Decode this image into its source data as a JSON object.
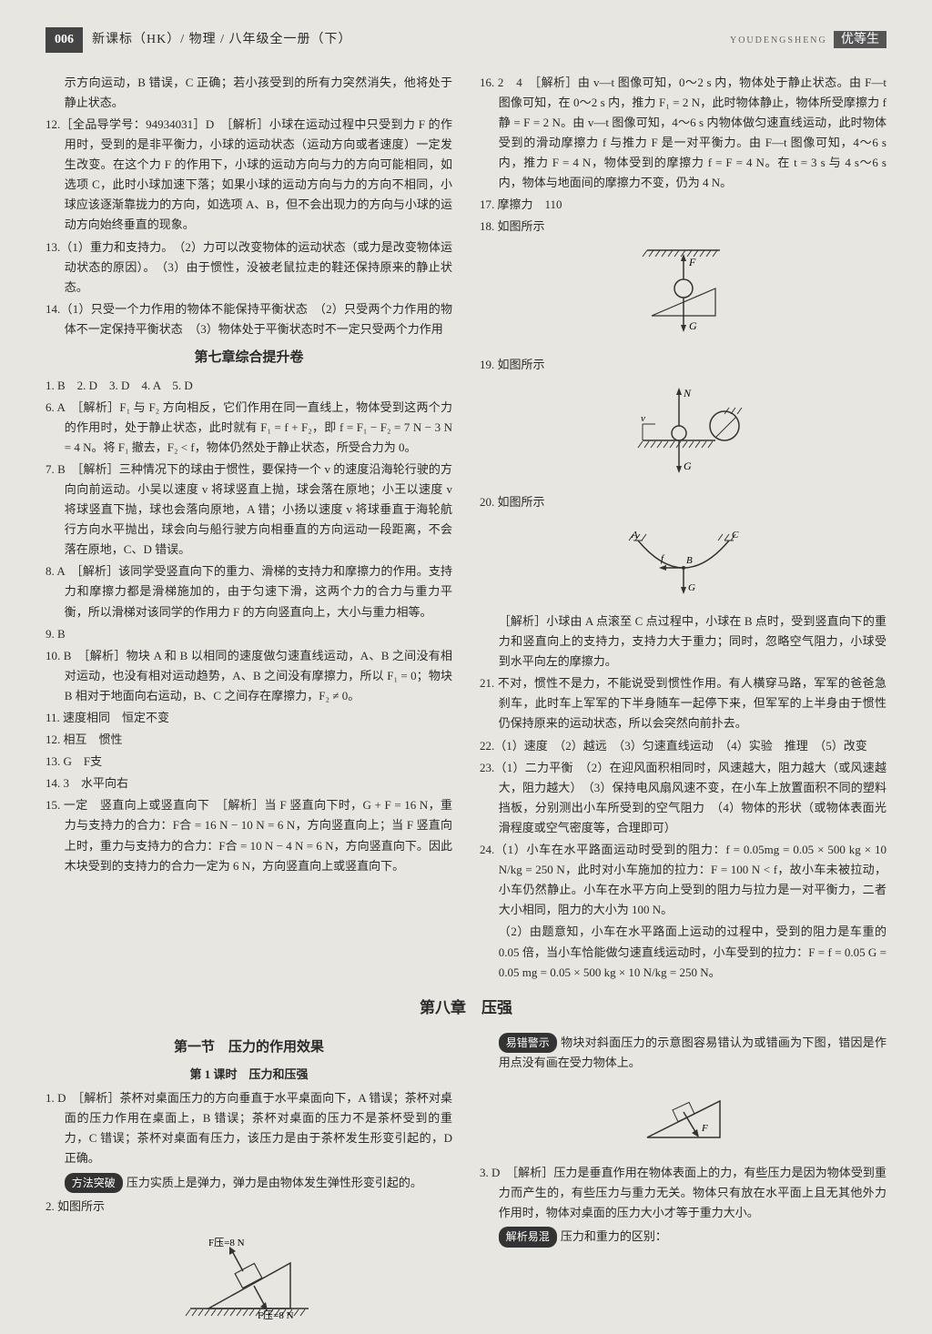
{
  "header": {
    "page_number": "006",
    "book_title": "新课标（HK）/ 物理 / 八年级全一册（下）",
    "brand_pinyin": "YOUDENGSHENG",
    "brand": "优等生"
  },
  "left_items": [
    {
      "type": "cont",
      "text": "示方向运动，B 错误，C 正确；若小孩受到的所有力突然消失，他将处于静止状态。"
    },
    {
      "type": "item",
      "text": "12.［全品导学号：94934031］D　［解析］小球在运动过程中只受到力 F 的作用时，受到的是非平衡力，小球的运动状态（运动方向或者速度）一定发生改变。在这个力 F 的作用下，小球的运动方向与力的方向可能相同，如选项 C，此时小球加速下落；如果小球的运动方向与力的方向不相同，小球应该逐渐靠拢力的方向，如选项 A、B，但不会出现力的方向与小球的运动方向始终垂直的现象。"
    },
    {
      "type": "item",
      "text": "13.（1）重力和支持力。　（2）力可以改变物体的运动状态（或力是改变物体运动状态的原因）。　（3）由于惯性，没被老鼠拉走的鞋还保持原来的静止状态。"
    },
    {
      "type": "item",
      "text": "14.（1）只受一个力作用的物体不能保持平衡状态　（2）只受两个力作用的物体不一定保持平衡状态　（3）物体处于平衡状态时不一定只受两个力作用"
    },
    {
      "type": "section",
      "text": "第七章综合提升卷"
    },
    {
      "type": "item",
      "text": "1. B　2. D　3. D　4. A　5. D"
    },
    {
      "type": "item",
      "text": "6. A　［解析］F₁ 与 F₂ 方向相反，它们作用在同一直线上，物体受到这两个力的作用时，处于静止状态，此时就有 F₁ = f + F₂，即 f = F₁ − F₂ = 7 N − 3 N = 4 N。将 F₁ 撤去，F₂ < f，物体仍然处于静止状态，所受合力为 0。"
    },
    {
      "type": "item",
      "text": "7. B　［解析］三种情况下的球由于惯性，要保持一个 v 的速度沿海轮行驶的方向向前运动。小吴以速度 v 将球竖直上抛，球会落在原地；小王以速度 v 将球竖直下抛，球也会落向原地，A 错；小扬以速度 v 将球垂直于海轮航行方向水平抛出，球会向与船行驶方向相垂直的方向运动一段距离，不会落在原地，C、D 错误。"
    },
    {
      "type": "item",
      "text": "8. A　［解析］该同学受竖直向下的重力、滑梯的支持力和摩擦力的作用。支持力和摩擦力都是滑梯施加的，由于匀速下滑，这两个力的合力与重力平衡，所以滑梯对该同学的作用力 F 的方向竖直向上，大小与重力相等。"
    },
    {
      "type": "item",
      "text": "9. B"
    },
    {
      "type": "item",
      "text": "10. B　［解析］物块 A 和 B 以相同的速度做匀速直线运动，A、B 之间没有相对运动，也没有相对运动趋势，A、B 之间没有摩擦力，所以 F₁ = 0；物块 B 相对于地面向右运动，B、C 之间存在摩擦力，F₂ ≠ 0。"
    },
    {
      "type": "item",
      "text": "11. 速度相同　恒定不变"
    },
    {
      "type": "item",
      "text": "12. 相互　惯性"
    },
    {
      "type": "item",
      "text": "13. G　F支"
    },
    {
      "type": "item",
      "text": "14. 3　水平向右"
    },
    {
      "type": "item",
      "text": "15. 一定　竖直向上或竖直向下　［解析］当 F 竖直向下时，G + F = 16 N，重力与支持力的合力：F合 = 16 N − 10 N = 6 N，方向竖直向上；当 F 竖直向上时，重力与支持力的合力：F合 = 10 N − 4 N = 6 N，方向竖直向下。因此木块受到的支持力的合力一定为 6 N，方向竖直向上或竖直向下。"
    }
  ],
  "right_items": [
    {
      "type": "item",
      "text": "16. 2　4　［解析］由 v—t 图像可知，0～2 s 内，物体处于静止状态。由 F—t 图像可知，在 0～2 s 内，推力 F₁ = 2 N，此时物体静止，物体所受摩擦力 f静 = F = 2 N。由 v—t 图像可知，4～6 s 内物体做匀速直线运动，此时物体受到的滑动摩擦力 f 与推力 F 是一对平衡力。由 F—t 图像可知，4～6 s 内，推力 F = 4 N，物体受到的摩擦力 f = F = 4 N。在 t = 3 s 与 4 s～6 s 内，物体与地面间的摩擦力不变，仍为 4 N。"
    },
    {
      "type": "item",
      "text": "17. 摩擦力　110"
    },
    {
      "type": "item",
      "text": "18. 如图所示"
    },
    {
      "type": "figure",
      "id": "fig18"
    },
    {
      "type": "item",
      "text": "19. 如图所示"
    },
    {
      "type": "figure",
      "id": "fig19"
    },
    {
      "type": "item",
      "text": "20. 如图所示"
    },
    {
      "type": "figure",
      "id": "fig20"
    },
    {
      "type": "cont",
      "text": "［解析］小球由 A 点滚至 C 点过程中，小球在 B 点时，受到竖直向下的重力和竖直向上的支持力，支持力大于重力；同时，忽略空气阻力，小球受到水平向左的摩擦力。"
    },
    {
      "type": "item",
      "text": "21. 不对，惯性不是力，不能说受到惯性作用。有人横穿马路，军军的爸爸急刹车，此时车上军军的下半身随车一起停下来，但军军的上半身由于惯性仍保持原来的运动状态，所以会突然向前扑去。"
    },
    {
      "type": "item",
      "text": "22.（1）速度　（2）越远　（3）匀速直线运动　（4）实验　推理　（5）改变"
    },
    {
      "type": "item",
      "text": "23.（1）二力平衡　（2）在迎风面积相同时，风速越大，阻力越大（或风速越大，阻力越大）　（3）保持电风扇风速不变，在小车上放置面积不同的塑料挡板，分别测出小车所受到的空气阻力　（4）物体的形状（或物体表面光滑程度或空气密度等，合理即可）"
    },
    {
      "type": "item",
      "text": "24.（1）小车在水平路面运动时受到的阻力：f = 0.05mg = 0.05 × 500 kg × 10 N/kg = 250 N，此时对小车施加的拉力：F = 100 N < f，故小车未被拉动，小车仍然静止。小车在水平方向上受到的阻力与拉力是一对平衡力，二者大小相同，阻力的大小为 100 N。"
    },
    {
      "type": "cont",
      "text": "（2）由题意知，小车在水平路面上运动的过程中，受到的阻力是车重的 0.05 倍，当小车恰能做匀速直线运动时，小车受到的拉力：F = f = 0.05 G = 0.05 mg = 0.05 × 500 kg × 10 N/kg = 250 N。"
    }
  ],
  "chapter8": {
    "title": "第八章　压强",
    "left": [
      {
        "type": "section",
        "text": "第一节　压力的作用效果"
      },
      {
        "type": "sub",
        "text": "第 1 课时　压力和压强"
      },
      {
        "type": "item",
        "text": "1. D　［解析］茶杯对桌面压力的方向垂直于水平桌面向下，A 错误；茶杯对桌面的压力作用在桌面上，B 错误；茶杯对桌面的压力不是茶杯受到的重力，C 错误；茶杯对桌面有压力，该压力是由于茶杯发生形变引起的，D 正确。"
      },
      {
        "type": "tip",
        "badge": "方法突破",
        "text": "压力实质上是弹力，弹力是由物体发生弹性形变引起的。"
      },
      {
        "type": "item",
        "text": "2. 如图所示"
      },
      {
        "type": "figure",
        "id": "fig2"
      }
    ],
    "right": [
      {
        "type": "tip",
        "badge": "易错警示",
        "text": "物块对斜面压力的示意图容易错认为或错画为下图，错因是作用点没有画在受力物体上。"
      },
      {
        "type": "figure",
        "id": "figwarn"
      },
      {
        "type": "item",
        "text": "3. D　［解析］压力是垂直作用在物体表面上的力，有些压力是因为物体受到重力而产生的，有些压力与重力无关。物体只有放在水平面上且无其他外力作用时，物体对桌面的压力大小才等于重力大小。"
      },
      {
        "type": "tip",
        "badge": "解析易混",
        "text": "压力和重力的区别："
      }
    ]
  },
  "figures": {
    "fig18": {
      "stroke": "#333",
      "labels": {
        "F": "F",
        "G": "G"
      }
    },
    "fig19": {
      "stroke": "#333",
      "label_N": "N",
      "label_G": "G"
    },
    "fig20": {
      "stroke": "#333",
      "labels": {
        "A": "A",
        "B": "B",
        "C": "C",
        "f": "f",
        "G": "G"
      }
    },
    "fig2": {
      "stroke": "#333",
      "F_top": "F压=8 N",
      "F_bot": "F压=8 N"
    },
    "figwarn": {
      "stroke": "#333",
      "label": "F"
    }
  }
}
